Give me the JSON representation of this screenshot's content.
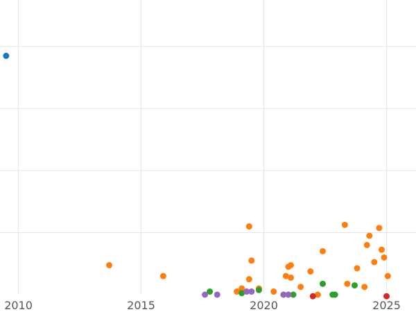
{
  "chart_data": {
    "type": "scatter",
    "title": "",
    "xlabel": "",
    "ylabel": "",
    "xlim": [
      2009.25,
      2026.2
    ],
    "ylim": [
      0,
      9.5
    ],
    "x_ticks": [
      2010,
      2015,
      2020,
      2025
    ],
    "x_tick_labels": [
      "2010",
      "2015",
      "2020",
      "2025"
    ],
    "y_gridlines": [
      2,
      4,
      6,
      8
    ],
    "grid": true,
    "legend": "none",
    "series": [
      {
        "color": "#1f77b4",
        "points": [
          [
            2009.5,
            7.7
          ]
        ]
      },
      {
        "color": "#ff7f0e",
        "points": [
          [
            2013.7,
            0.95
          ],
          [
            2015.9,
            0.6
          ],
          [
            2018.9,
            0.1
          ],
          [
            2019.1,
            0.2
          ],
          [
            2019.4,
            2.2
          ],
          [
            2019.4,
            0.5
          ],
          [
            2019.5,
            1.1
          ],
          [
            2019.8,
            0.2
          ],
          [
            2020.4,
            0.1
          ],
          [
            2020.9,
            0.6
          ],
          [
            2021.0,
            0.9
          ],
          [
            2021.1,
            0.55
          ],
          [
            2021.1,
            0.95
          ],
          [
            2021.5,
            0.25
          ],
          [
            2021.9,
            0.75
          ],
          [
            2022.2,
            0.0
          ],
          [
            2022.4,
            1.4
          ],
          [
            2023.3,
            2.25
          ],
          [
            2023.4,
            0.35
          ],
          [
            2023.8,
            0.85
          ],
          [
            2024.1,
            0.25
          ],
          [
            2024.2,
            1.6
          ],
          [
            2024.3,
            1.9
          ],
          [
            2024.5,
            1.05
          ],
          [
            2024.7,
            2.15
          ],
          [
            2024.8,
            1.45
          ],
          [
            2024.9,
            1.2
          ],
          [
            2025.05,
            0.6
          ]
        ]
      },
      {
        "color": "#2ca02c",
        "points": [
          [
            2017.8,
            0.1
          ],
          [
            2019.1,
            0.05
          ],
          [
            2019.8,
            0.15
          ],
          [
            2021.2,
            0.0
          ],
          [
            2022.4,
            0.35
          ],
          [
            2022.8,
            0.0
          ],
          [
            2022.9,
            0.0
          ],
          [
            2023.7,
            0.3
          ]
        ]
      },
      {
        "color": "#9467bd",
        "points": [
          [
            2017.6,
            0.0
          ],
          [
            2018.1,
            0.0
          ],
          [
            2019.3,
            0.1
          ],
          [
            2019.5,
            0.1
          ],
          [
            2020.8,
            0.0
          ],
          [
            2021.0,
            0.0
          ]
        ]
      },
      {
        "color": "#d62728",
        "points": [
          [
            2022.0,
            -0.05
          ],
          [
            2025.0,
            -0.05
          ]
        ]
      }
    ]
  }
}
